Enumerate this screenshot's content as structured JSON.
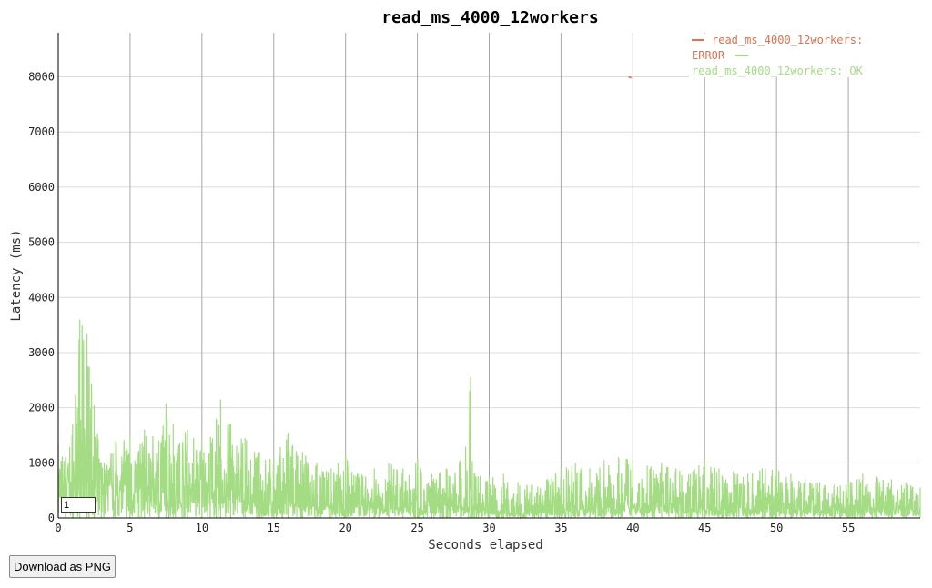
{
  "chart_data": {
    "type": "line",
    "title": "read_ms_4000_12workers",
    "xlabel": "Seconds elapsed",
    "ylabel": "Latency (ms)",
    "xlim": [
      0,
      60
    ],
    "ylim": [
      0,
      8800
    ],
    "x_ticks": [
      0,
      5,
      10,
      15,
      20,
      25,
      30,
      35,
      40,
      45,
      50,
      55
    ],
    "y_ticks": [
      0,
      1000,
      2000,
      3000,
      4000,
      5000,
      6000,
      7000,
      8000
    ],
    "grid": true,
    "legend_position": "top-right",
    "series": [
      {
        "name": "read_ms_4000_12workers: ERROR",
        "color": "#e07050",
        "points": [
          [
            39.7,
            8000
          ],
          [
            39.9,
            7980
          ]
        ]
      },
      {
        "name": "read_ms_4000_12workers: OK",
        "color": "#a4dc84",
        "envelope": [
          [
            0,
            1350
          ],
          [
            0.5,
            1100
          ],
          [
            1,
            1700
          ],
          [
            1.5,
            3600
          ],
          [
            2,
            3350
          ],
          [
            2.5,
            2050
          ],
          [
            3,
            1000
          ],
          [
            4,
            1400
          ],
          [
            5,
            1500
          ],
          [
            5.5,
            1200
          ],
          [
            6,
            1600
          ],
          [
            7,
            1400
          ],
          [
            7.5,
            2080
          ],
          [
            8,
            1700
          ],
          [
            9,
            1600
          ],
          [
            10,
            1400
          ],
          [
            11,
            1800
          ],
          [
            11.3,
            2150
          ],
          [
            12,
            1700
          ],
          [
            13,
            1450
          ],
          [
            14,
            1200
          ],
          [
            15,
            1100
          ],
          [
            16,
            1550
          ],
          [
            17,
            1200
          ],
          [
            18,
            1000
          ],
          [
            19,
            900
          ],
          [
            20,
            1150
          ],
          [
            21,
            800
          ],
          [
            22,
            900
          ],
          [
            23,
            1000
          ],
          [
            24,
            900
          ],
          [
            25,
            1100
          ],
          [
            26,
            800
          ],
          [
            27,
            900
          ],
          [
            28,
            1050
          ],
          [
            28.7,
            2550
          ],
          [
            29,
            800
          ],
          [
            30,
            750
          ],
          [
            31,
            800
          ],
          [
            32,
            650
          ],
          [
            33,
            600
          ],
          [
            34,
            700
          ],
          [
            35,
            900
          ],
          [
            36,
            1000
          ],
          [
            37,
            900
          ],
          [
            38,
            1050
          ],
          [
            39,
            1100
          ],
          [
            40,
            1050
          ],
          [
            41,
            950
          ],
          [
            42,
            1000
          ],
          [
            43,
            900
          ],
          [
            44,
            800
          ],
          [
            45,
            1100
          ],
          [
            46,
            900
          ],
          [
            47,
            850
          ],
          [
            48,
            800
          ],
          [
            49,
            900
          ],
          [
            50,
            950
          ],
          [
            51,
            800
          ],
          [
            52,
            700
          ],
          [
            53,
            650
          ],
          [
            54,
            600
          ],
          [
            55,
            650
          ],
          [
            56,
            800
          ],
          [
            57,
            750
          ],
          [
            58,
            700
          ],
          [
            59,
            650
          ],
          [
            60,
            550
          ]
        ],
        "baseline": [
          [
            0,
            500
          ],
          [
            2,
            650
          ],
          [
            4,
            550
          ],
          [
            6,
            500
          ],
          [
            8,
            450
          ],
          [
            10,
            550
          ],
          [
            12,
            400
          ],
          [
            14,
            250
          ],
          [
            16,
            300
          ],
          [
            18,
            250
          ],
          [
            20,
            250
          ],
          [
            22,
            200
          ],
          [
            24,
            180
          ],
          [
            26,
            200
          ],
          [
            28,
            200
          ],
          [
            30,
            150
          ],
          [
            32,
            80
          ],
          [
            34,
            100
          ],
          [
            36,
            150
          ],
          [
            38,
            180
          ],
          [
            40,
            200
          ],
          [
            42,
            200
          ],
          [
            44,
            150
          ],
          [
            46,
            150
          ],
          [
            48,
            180
          ],
          [
            50,
            180
          ],
          [
            52,
            130
          ],
          [
            54,
            110
          ],
          [
            56,
            150
          ],
          [
            58,
            180
          ],
          [
            60,
            150
          ]
        ]
      }
    ]
  },
  "controls": {
    "roll_value": "1",
    "download_label": "Download as PNG"
  }
}
